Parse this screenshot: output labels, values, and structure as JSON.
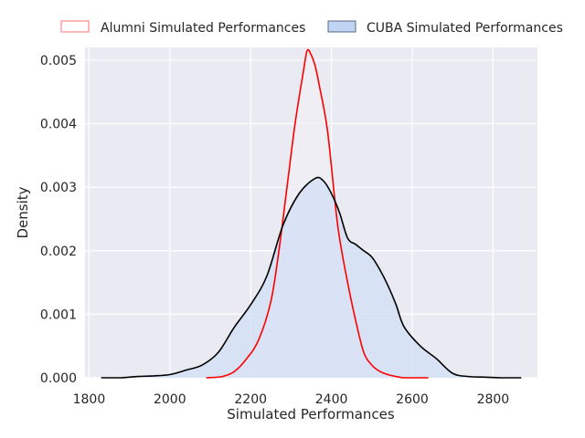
{
  "chart_data": {
    "type": "area",
    "title": "",
    "xlabel": "Simulated Performances",
    "ylabel": "Density",
    "xlim": [
      1790,
      2910
    ],
    "ylim": [
      0,
      0.0052
    ],
    "xticks": [
      1800,
      2000,
      2200,
      2400,
      2600,
      2800
    ],
    "yticks": [
      0.0,
      0.001,
      0.002,
      0.003,
      0.004,
      0.005
    ],
    "ytick_labels": [
      "0.000",
      "0.001",
      "0.002",
      "0.003",
      "0.004",
      "0.005"
    ],
    "xtick_labels": [
      "1800",
      "2000",
      "2200",
      "2400",
      "2600",
      "2800"
    ],
    "grid": true,
    "legend_position": "top",
    "colors": {
      "plot_background": "#EAEAF2",
      "grid": "#FFFFFF",
      "alumni_line": "#FF0000",
      "alumni_fill": "#F0EEF5",
      "cuba_line": "#000000",
      "cuba_fill": "#D1DFF5",
      "cuba_legend_fill": "#BFD5F3",
      "cuba_legend_edge": "#5A6A85",
      "alumni_legend_edge": "#FF7070"
    },
    "series": [
      {
        "name": "Alumni Simulated Performances",
        "x": [
          2090,
          2130,
          2160,
          2190,
          2220,
          2250,
          2270,
          2290,
          2310,
          2330,
          2340,
          2350,
          2360,
          2370,
          2390,
          2410,
          2420,
          2440,
          2460,
          2480,
          2500,
          2520,
          2540,
          2560,
          2580,
          2610,
          2640
        ],
        "values": [
          0.0,
          2e-05,
          0.0001,
          0.0003,
          0.0006,
          0.0012,
          0.002,
          0.003,
          0.004,
          0.0048,
          0.00515,
          0.00508,
          0.0049,
          0.0046,
          0.0039,
          0.0027,
          0.0022,
          0.0015,
          0.0009,
          0.0004,
          0.0002,
          0.0001,
          5e-05,
          2e-05,
          0.0,
          0.0,
          0.0
        ]
      },
      {
        "name": "CUBA Simulated Performances",
        "x": [
          1830,
          1880,
          1920,
          1960,
          2000,
          2040,
          2080,
          2120,
          2160,
          2200,
          2240,
          2280,
          2320,
          2360,
          2380,
          2400,
          2420,
          2440,
          2460,
          2480,
          2500,
          2520,
          2540,
          2560,
          2580,
          2620,
          2660,
          2700,
          2740,
          2780,
          2820,
          2870
        ],
        "values": [
          0.0,
          0.0,
          2e-05,
          3e-05,
          5e-05,
          0.00012,
          0.0002,
          0.0004,
          0.0008,
          0.00115,
          0.0016,
          0.0024,
          0.0029,
          0.00314,
          0.0031,
          0.0029,
          0.0026,
          0.0022,
          0.0021,
          0.002,
          0.0019,
          0.0017,
          0.00145,
          0.00115,
          0.0008,
          0.0005,
          0.0003,
          7e-05,
          2e-05,
          1e-05,
          0.0,
          0.0
        ]
      }
    ]
  }
}
